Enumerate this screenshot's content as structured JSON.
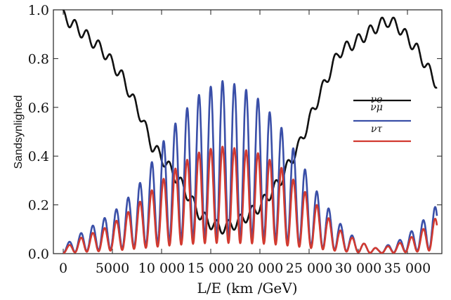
{
  "chart_data": {
    "type": "line",
    "title": "",
    "xlabel": "L/E (km /GeV)",
    "ylabel": "Sandsynlighed",
    "xlim": [
      -1000,
      38500
    ],
    "ylim": [
      0,
      1.0
    ],
    "xticks": [
      0,
      5000,
      10000,
      15000,
      20000,
      25000,
      30000,
      35000
    ],
    "xtick_labels": [
      "0",
      "5000",
      "10 000",
      "15 000",
      "20 000",
      "25 000",
      "30 000",
      "35 000"
    ],
    "yticks": [
      0.0,
      0.2,
      0.4,
      0.6,
      0.8,
      1.0
    ],
    "ytick_labels": [
      "0.0",
      "0.2",
      "0.4",
      "0.6",
      "0.8",
      "1.0"
    ],
    "legend_position": "right",
    "series": [
      {
        "name": "νe",
        "color": "#111111",
        "x": [
          0,
          2000,
          4000,
          6000,
          8000,
          9000,
          10000,
          12000,
          14000,
          15000,
          16000,
          17000,
          18000,
          20000,
          22000,
          24000,
          26000,
          28000,
          30000,
          32000,
          33000,
          34000,
          36000,
          38000
        ],
        "y": [
          1.0,
          0.93,
          0.86,
          0.75,
          0.58,
          0.47,
          0.42,
          0.31,
          0.18,
          0.15,
          0.13,
          0.14,
          0.16,
          0.22,
          0.32,
          0.47,
          0.67,
          0.85,
          0.9,
          0.96,
          0.98,
          0.96,
          0.86,
          0.72
        ]
      },
      {
        "name": "νμ",
        "color": "#3a4fa8",
        "x": [
          0,
          2000,
          4000,
          6000,
          8000,
          10000,
          12000,
          14000,
          16000,
          18000,
          20000,
          22000,
          24000,
          26000,
          28000,
          30000,
          32000,
          34000,
          36000,
          38000
        ],
        "y": [
          0.03,
          0.09,
          0.14,
          0.2,
          0.3,
          0.45,
          0.57,
          0.66,
          0.71,
          0.69,
          0.63,
          0.53,
          0.39,
          0.24,
          0.13,
          0.05,
          0.02,
          0.05,
          0.11,
          0.2
        ]
      },
      {
        "name": "ντ",
        "color": "#d23a30",
        "x": [
          0,
          2000,
          4000,
          6000,
          8000,
          10000,
          12000,
          14000,
          16000,
          18000,
          20000,
          22000,
          24000,
          26000,
          28000,
          30000,
          32000,
          34000,
          36000,
          38000
        ],
        "y": [
          0.02,
          0.07,
          0.1,
          0.15,
          0.22,
          0.3,
          0.37,
          0.42,
          0.44,
          0.43,
          0.41,
          0.36,
          0.28,
          0.19,
          0.1,
          0.05,
          0.02,
          0.04,
          0.08,
          0.15
        ]
      }
    ]
  }
}
